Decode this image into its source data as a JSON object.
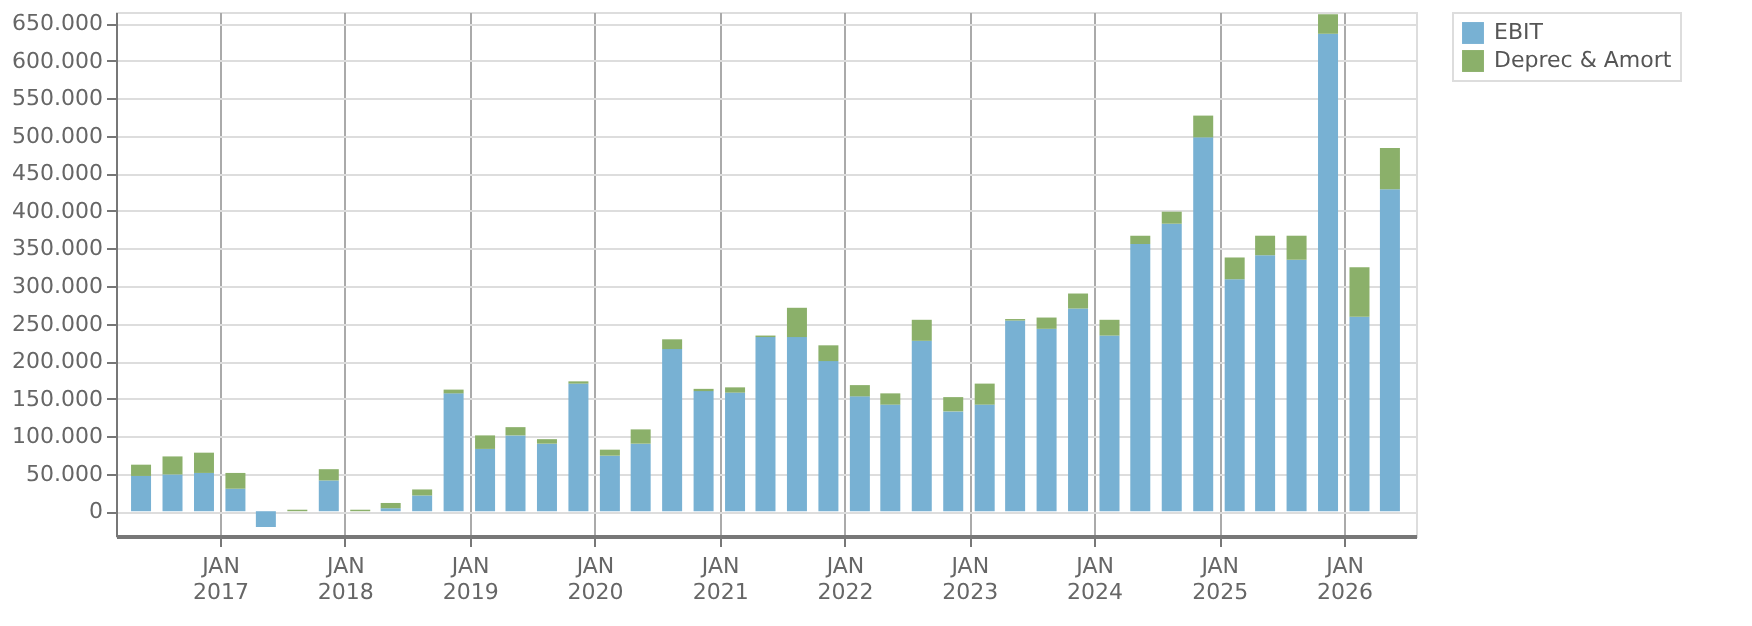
{
  "chart_data": {
    "type": "bar",
    "stacked": true,
    "x": [
      "2016-05-15",
      "2016-08-15",
      "2016-11-15",
      "2017-02-15",
      "2017-05-15",
      "2017-08-15",
      "2017-11-15",
      "2018-02-15",
      "2018-05-15",
      "2018-08-15",
      "2018-11-15",
      "2019-02-15",
      "2019-05-15",
      "2019-08-15",
      "2019-11-15",
      "2020-02-15",
      "2020-05-15",
      "2020-08-15",
      "2020-11-15",
      "2021-02-15",
      "2021-05-15",
      "2021-08-15",
      "2021-11-15",
      "2022-02-15",
      "2022-05-15",
      "2022-08-15",
      "2022-11-15",
      "2023-02-15",
      "2023-05-15",
      "2023-08-15",
      "2023-11-15",
      "2024-02-15",
      "2024-05-15",
      "2024-08-15",
      "2024-11-15",
      "2025-02-15",
      "2025-05-15",
      "2025-08-15",
      "2025-11-15",
      "2026-02-15",
      "2026-05-15"
    ],
    "series": [
      {
        "name": "EBIT",
        "color": "#78b1d3",
        "values": [
          47000,
          49000,
          51000,
          30000,
          -21000,
          null,
          41000,
          null,
          4000,
          21000,
          157000,
          83000,
          101000,
          90000,
          170000,
          74000,
          90000,
          216000,
          160000,
          158000,
          232000,
          232000,
          200000,
          153000,
          142000,
          227000,
          133000,
          142000,
          254000,
          243000,
          270000,
          234000,
          356000,
          383000,
          498000,
          309000,
          341000,
          335000,
          636000,
          259000,
          429000
        ]
      },
      {
        "name": "Deprec & Amort",
        "color": "#8bb06a",
        "values": [
          15000,
          24000,
          27000,
          21000,
          0,
          2000,
          15000,
          2000,
          7000,
          8000,
          5000,
          18000,
          11000,
          6000,
          3000,
          8000,
          19000,
          13000,
          3000,
          7000,
          2000,
          39000,
          21000,
          15000,
          15000,
          28000,
          19000,
          28000,
          2000,
          15000,
          20000,
          21000,
          11000,
          16000,
          29000,
          29000,
          26000,
          32000,
          26000,
          66000,
          55000
        ]
      }
    ],
    "xlim": [
      "2016-04-01",
      "2026-07-01"
    ],
    "xticks": [
      {
        "value": "2017-01-01",
        "label": "JAN 2017"
      },
      {
        "value": "2018-01-01",
        "label": "JAN 2018"
      },
      {
        "value": "2019-01-01",
        "label": "JAN 2019"
      },
      {
        "value": "2020-01-01",
        "label": "JAN 2020"
      },
      {
        "value": "2021-01-01",
        "label": "JAN 2021"
      },
      {
        "value": "2022-01-01",
        "label": "JAN 2022"
      },
      {
        "value": "2023-01-01",
        "label": "JAN 2023"
      },
      {
        "value": "2024-01-01",
        "label": "JAN 2024"
      },
      {
        "value": "2025-01-01",
        "label": "JAN 2025"
      },
      {
        "value": "2026-01-01",
        "label": "JAN 2026"
      }
    ],
    "ylim": [
      -33000,
      665000
    ],
    "yticks": [
      0,
      {
        "value": 50000,
        "label": "50.000"
      },
      {
        "value": 100000,
        "label": "100.000"
      },
      {
        "value": 150000,
        "label": "150.000"
      },
      {
        "value": 200000,
        "label": "200.000"
      },
      {
        "value": 250000,
        "label": "250.000"
      },
      {
        "value": 300000,
        "label": "300.000"
      },
      {
        "value": 350000,
        "label": "350.000"
      },
      {
        "value": 400000,
        "label": "400.000"
      },
      {
        "value": 450000,
        "label": "450.000"
      },
      {
        "value": 500000,
        "label": "500.000"
      },
      {
        "value": 550000,
        "label": "550.000"
      },
      {
        "value": 600000,
        "label": "600.000"
      },
      {
        "value": 650000,
        "label": "650.000"
      }
    ],
    "grid": true,
    "legend": "top right"
  }
}
